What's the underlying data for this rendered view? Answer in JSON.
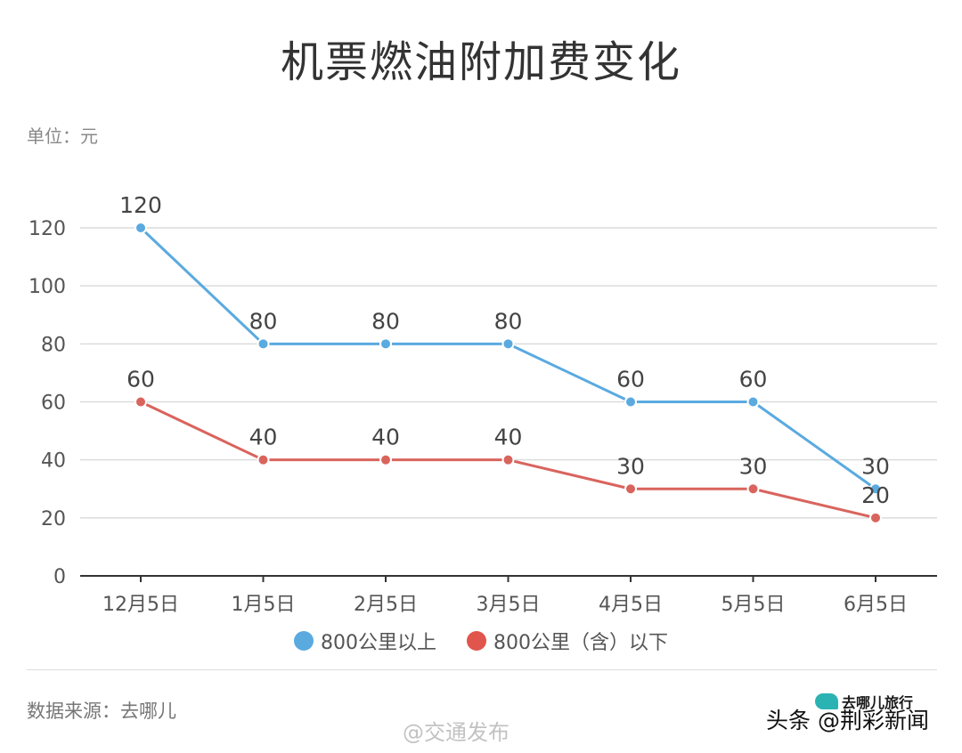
{
  "title": "机票燃油附加费变化",
  "unit_label": "单位：元",
  "source_label": "数据来源：去哪儿",
  "logo_text": "去哪儿旅行",
  "watermark_weibo": "@交通发布",
  "watermark_toutiao": "头条 @荆彩新闻",
  "colors": {
    "series_high": "#5aaae0",
    "series_low": "#d9645d",
    "legend_high": "#5aaae0",
    "legend_low": "#e0554c",
    "grid": "#dcdcdc",
    "axis": "#333333",
    "tick_text": "#555555",
    "label_text": "#444444"
  },
  "chart_data": {
    "type": "line",
    "title": "机票燃油附加费变化",
    "ylabel": "单位：元",
    "categories": [
      "12月5日",
      "1月5日",
      "2月5日",
      "3月5日",
      "4月5日",
      "5月5日",
      "6月5日"
    ],
    "ylim": [
      0,
      120
    ],
    "yticks": [
      "0",
      "20",
      "40",
      "60",
      "80",
      "100",
      "120"
    ],
    "grid": true,
    "legend_position": "bottom",
    "series": [
      {
        "name": "800公里以上",
        "values": [
          120,
          80,
          80,
          80,
          60,
          60,
          30
        ]
      },
      {
        "name": "800公里（含）以下",
        "values": [
          60,
          40,
          40,
          40,
          30,
          30,
          20
        ]
      }
    ]
  }
}
